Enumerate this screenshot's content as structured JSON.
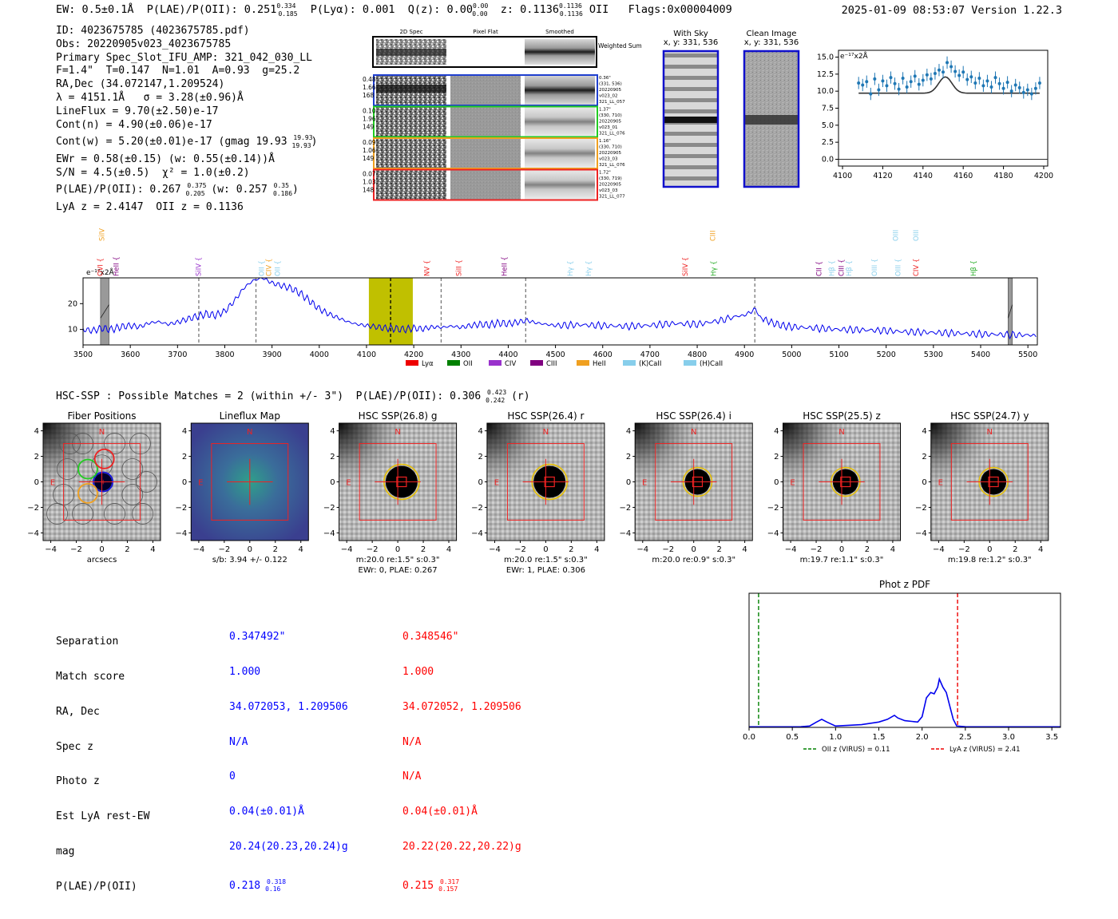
{
  "header": {
    "left": "EW: 0.5±0.1Å  P(LAE)/P(OII): 0.251",
    "left_sup": "0.334",
    "left_sub": "0.185",
    "plya": "P(Lyα): 0.001  Q(z): 0.00",
    "qz_sup": "0.00",
    "qz_sub": "0.00",
    "z": "z: 0.1136",
    "z_sup": "0.1136",
    "z_sub": "0.1136",
    "zline": "OII   Flags:0x00004009",
    "right": "2025-01-09 08:53:07  Version 1.22.3"
  },
  "info": {
    "lines": [
      "ID: 4023675785 (4023675785.pdf)",
      "Obs: 20220905v023_4023675785",
      "Primary Spec_Slot_IFU_AMP: 321_042_030_LL",
      "F=1.4\"  T=0.147  N=1.01  A=0.93  g=25.2",
      "RA,Dec (34.072147,1.209524)",
      "λ = 4151.1Å   σ = 3.28(±0.96)Å",
      "LineFlux = 9.70(±2.50)e-17",
      "Cont(n) = 4.90(±0.06)e-17",
      "Cont(w) = 5.20(±0.01)e-17 (gmag 19.93",
      "EWr = 0.58(±0.15) (w: 0.55(±0.14))Å",
      "S/N = 4.5(±0.5)  χ² = 1.0(±0.2)",
      "P(LAE)/P(OII): 0.267",
      "LyA z = 2.4147  OII z = 0.1136"
    ],
    "gmag_sup": "19.93",
    "gmag_sub": "19.93",
    "plae_sup": "0.375",
    "plae_sub": "0.205",
    "plae_w": "(w: 0.257",
    "plae_w_sup": "0.35",
    "plae_w_sub": "0.186"
  },
  "cutouts": {
    "col_labels": [
      "2D Spec",
      "Pixel Flat",
      "Smoothed"
    ],
    "weighted_label": "Weighted Sum",
    "rows": [
      {
        "vals": [
          "0.48",
          "1.66",
          "168"
        ],
        "color": "#1f3fcf",
        "side": [
          "0.36\"",
          "(331, 536)",
          "20220905",
          "v023_02",
          "321_LL_057"
        ]
      },
      {
        "vals": [
          "0.10",
          "1.96",
          "149"
        ],
        "color": "#22cc22",
        "side": [
          "1.37\"",
          "(330, 710)",
          "20220905",
          "v023_01",
          "321_LL_076"
        ]
      },
      {
        "vals": [
          "0.09",
          "1.06",
          "149"
        ],
        "color": "#f0a020",
        "side": [
          "1.16\"",
          "(330, 710)",
          "20220905",
          "v023_03",
          "321_LL_076"
        ]
      },
      {
        "vals": [
          "0.07",
          "1.03",
          "148"
        ],
        "color": "#ee2222",
        "side": [
          "1.72\"",
          "(330, 719)",
          "20220905",
          "v023_03",
          "321_LL_077"
        ]
      }
    ],
    "with_sky_title": "With Sky",
    "with_sky_coord": "x, y: 331, 536",
    "clean_title": "Clean Image",
    "clean_coord": "x, y: 331, 536"
  },
  "chart_data": [
    {
      "type": "scatter",
      "name": "emission-line-fit",
      "unit_label": "e⁻¹⁷x2Å",
      "x": [
        4108,
        4110,
        4112,
        4114,
        4116,
        4118,
        4120,
        4122,
        4124,
        4126,
        4128,
        4130,
        4132,
        4134,
        4136,
        4138,
        4140,
        4142,
        4144,
        4146,
        4148,
        4150,
        4152,
        4154,
        4156,
        4158,
        4160,
        4162,
        4164,
        4166,
        4168,
        4170,
        4172,
        4174,
        4176,
        4178,
        4180,
        4182,
        4184,
        4186,
        4188,
        4190,
        4192,
        4194,
        4196,
        4198
      ],
      "y": [
        11.2,
        10.9,
        11.4,
        9.6,
        11.8,
        10.2,
        11.5,
        10.8,
        12.0,
        11.1,
        10.3,
        11.9,
        10.6,
        11.4,
        12.2,
        11.0,
        11.6,
        12.4,
        11.8,
        12.6,
        13.1,
        12.8,
        14.2,
        13.6,
        12.9,
        12.3,
        12.8,
        11.7,
        12.1,
        11.2,
        11.9,
        10.8,
        11.5,
        10.6,
        12.0,
        11.1,
        10.4,
        11.3,
        10.0,
        10.9,
        10.5,
        9.8,
        10.2,
        9.6,
        10.4,
        11.2
      ],
      "fit": {
        "continuum": 9.7,
        "amplitude": 2.4,
        "center": 4151.1,
        "sigma": 3.28
      },
      "xlim": [
        4098,
        4202
      ],
      "ylim": [
        -1,
        16
      ],
      "xticks": [
        4100,
        4120,
        4140,
        4160,
        4180,
        4200
      ],
      "yticks": [
        0.0,
        2.5,
        5.0,
        7.5,
        10.0,
        12.5,
        15.0
      ]
    },
    {
      "type": "line",
      "name": "full-spectrum",
      "unit_label": "e⁻¹⁷x2Å",
      "xlim": [
        3500,
        5520
      ],
      "ylim": [
        4,
        30
      ],
      "xticks": [
        3500,
        3600,
        3700,
        3800,
        3900,
        4000,
        4100,
        4200,
        4300,
        4400,
        4500,
        4600,
        4700,
        4800,
        4900,
        5000,
        5100,
        5200,
        5300,
        5400,
        5500
      ],
      "yticks": [
        10,
        20
      ],
      "x": [
        3500,
        3520,
        3540,
        3560,
        3580,
        3600,
        3620,
        3640,
        3660,
        3680,
        3700,
        3720,
        3740,
        3760,
        3780,
        3800,
        3820,
        3840,
        3860,
        3880,
        3900,
        3920,
        3940,
        3960,
        3980,
        4000,
        4020,
        4040,
        4060,
        4080,
        4100,
        4120,
        4140,
        4160,
        4180,
        4200,
        4220,
        4240,
        4260,
        4280,
        4300,
        4320,
        4340,
        4360,
        4380,
        4400,
        4420,
        4440,
        4460,
        4480,
        4500,
        4550,
        4600,
        4650,
        4700,
        4750,
        4800,
        4850,
        4880,
        4900,
        4920,
        4930,
        4940,
        4960,
        4980,
        5000,
        5050,
        5100,
        5150,
        5200,
        5250,
        5300,
        5350,
        5400,
        5450,
        5500,
        5520
      ],
      "y": [
        10,
        9.5,
        10.5,
        10,
        11,
        11.5,
        11,
        12.5,
        13,
        12,
        12.8,
        14,
        15,
        16,
        15.5,
        17,
        21,
        26,
        29,
        30,
        28,
        27,
        26,
        24,
        21,
        18,
        16,
        14.5,
        13,
        12,
        11.5,
        11,
        10.5,
        10.3,
        10,
        10.5,
        10.2,
        11,
        10.8,
        11.3,
        10.8,
        11.5,
        12,
        11.8,
        12.5,
        12.2,
        12.8,
        13.5,
        12.5,
        12,
        11.5,
        11.8,
        11.5,
        11.2,
        11.6,
        12.3,
        12,
        13.5,
        15,
        15.5,
        17.5,
        16.5,
        14,
        12.5,
        11.5,
        11,
        10.5,
        10,
        9.8,
        9.5,
        9,
        8.8,
        8.5,
        8.2,
        8,
        7.8,
        7.6
      ],
      "highlight_region": [
        4105,
        4198
      ],
      "masked_regions": [
        [
          3537,
          3555
        ],
        [
          5458,
          5467
        ]
      ],
      "dashed_lines": [
        3745,
        3866,
        4151,
        4258,
        4437,
        4922
      ],
      "line_labels": [
        {
          "label": "SiIV",
          "x": 3545,
          "color": "#f0a020",
          "row": 0
        },
        {
          "label": "OVI",
          "x": 3541,
          "color": "#ee2222",
          "row": 1
        },
        {
          "label": "HeII",
          "x": 3575,
          "color": "#800080",
          "row": 1
        },
        {
          "label": "SiIV",
          "x": 3749,
          "color": "#9932cc",
          "row": 1
        },
        {
          "label": "OII",
          "x": 3883,
          "color": "#87ceeb",
          "row": 1
        },
        {
          "label": "CIV",
          "x": 3898,
          "color": "#f0a020",
          "row": 1
        },
        {
          "label": "OII",
          "x": 3917,
          "color": "#87ceeb",
          "row": 1
        },
        {
          "label": "NV",
          "x": 4233,
          "color": "#ee2222",
          "row": 1
        },
        {
          "label": "SiII",
          "x": 4300,
          "color": "#ee2222",
          "row": 1
        },
        {
          "label": "HeII",
          "x": 4397,
          "color": "#800080",
          "row": 1
        },
        {
          "label": "Hγ",
          "x": 4536,
          "color": "#87ceeb",
          "row": 1
        },
        {
          "label": "Hγ",
          "x": 4575,
          "color": "#87ceeb",
          "row": 1
        },
        {
          "label": "SiIV",
          "x": 4780,
          "color": "#ee2222",
          "row": 1
        },
        {
          "label": "CIII",
          "x": 4838,
          "color": "#f0a020",
          "row": 0
        },
        {
          "label": "Hγ",
          "x": 4840,
          "color": "#22aa22",
          "row": 1
        },
        {
          "label": "CII",
          "x": 5063,
          "color": "#800080",
          "row": 1
        },
        {
          "label": "Hβ",
          "x": 5090,
          "color": "#87ceeb",
          "row": 1
        },
        {
          "label": "CIII",
          "x": 5110,
          "color": "#800080",
          "row": 1
        },
        {
          "label": "Hβ",
          "x": 5126,
          "color": "#87ceeb",
          "row": 1
        },
        {
          "label": "OIII",
          "x": 5180,
          "color": "#87ceeb",
          "row": 1
        },
        {
          "label": "OIII",
          "x": 5225,
          "color": "#87ceeb",
          "row": 0
        },
        {
          "label": "OIII",
          "x": 5230,
          "color": "#87ceeb",
          "row": 1
        },
        {
          "label": "OIII",
          "x": 5268,
          "color": "#87ceeb",
          "row": 0
        },
        {
          "label": "CIV",
          "x": 5268,
          "color": "#ee2222",
          "row": 1
        },
        {
          "label": "Hβ",
          "x": 5390,
          "color": "#22aa22",
          "row": 1
        }
      ],
      "legend": [
        {
          "label": "Lyα",
          "color": "#ee0000"
        },
        {
          "label": "OII",
          "color": "#008000"
        },
        {
          "label": "CIV",
          "color": "#9932cc"
        },
        {
          "label": "CIII",
          "color": "#800080"
        },
        {
          "label": "HeII",
          "color": "#f0a020"
        },
        {
          "label": "(K)CaII",
          "color": "#87ceeb"
        },
        {
          "label": "(H)CaII",
          "color": "#87ceeb"
        }
      ]
    },
    {
      "type": "line",
      "name": "photo-z-pdf",
      "title": "Phot z PDF",
      "xlim": [
        0,
        3.6
      ],
      "ylim": [
        0,
        1
      ],
      "xticks": [
        0.0,
        0.5,
        1.0,
        1.5,
        2.0,
        2.5,
        3.0,
        3.5
      ],
      "x": [
        0,
        0.6,
        0.7,
        0.78,
        0.84,
        0.9,
        1.0,
        1.3,
        1.5,
        1.6,
        1.68,
        1.72,
        1.8,
        1.95,
        2.0,
        2.05,
        2.1,
        2.14,
        2.18,
        2.2,
        2.24,
        2.28,
        2.32,
        2.36,
        2.4,
        2.5,
        3.0,
        3.6
      ],
      "y": [
        0.004,
        0.005,
        0.01,
        0.04,
        0.06,
        0.04,
        0.01,
        0.02,
        0.04,
        0.06,
        0.09,
        0.07,
        0.05,
        0.04,
        0.08,
        0.22,
        0.26,
        0.25,
        0.3,
        0.36,
        0.3,
        0.26,
        0.16,
        0.06,
        0.01,
        0.005,
        0.004,
        0.004
      ],
      "vlines": [
        {
          "x": 0.11,
          "color": "#008000",
          "label": "OII z (VIRUS) = 0.11"
        },
        {
          "x": 2.41,
          "color": "#ee0000",
          "label": "LyA z (VIRUS) = 2.41"
        }
      ]
    }
  ],
  "hsc": {
    "title": "HSC-SSP : Possible Matches = 2 (within +/- 3\")  P(LAE)/P(OII): 0.306",
    "title_sup": "0.423",
    "title_sub": "0.242",
    "title_tail": "(r)",
    "panels": [
      {
        "title": "Fiber Positions",
        "caption1": "arcsecs",
        "caption2": ""
      },
      {
        "title": "Lineflux Map",
        "caption1": "s/b: 3.94 +/- 0.122",
        "caption2": ""
      },
      {
        "title": "HSC SSP(26.8) g",
        "caption1": "m:20.0  re:1.5\"  s:0.3\"",
        "caption2": "EWr: 0, PLAE: 0.267"
      },
      {
        "title": "HSC SSP(26.4) r",
        "caption1": "m:20.0  re:1.5\"  s:0.3\"",
        "caption2": "EWr: 1, PLAE: 0.306"
      },
      {
        "title": "HSC SSP(26.4) i",
        "caption1": "m:20.0  re:0.9\"  s:0.3\"",
        "caption2": ""
      },
      {
        "title": "HSC SSP(25.5) z",
        "caption1": "m:19.7  re:1.1\"  s:0.3\"",
        "caption2": ""
      },
      {
        "title": "HSC SSP(24.7) y",
        "caption1": "m:19.8  re:1.2\"  s:0.3\"",
        "caption2": ""
      }
    ],
    "ticks": [
      "4",
      "2",
      "0",
      "−2",
      "−4"
    ],
    "xticks": [
      "−4",
      "−2",
      "0",
      "2",
      "4"
    ],
    "north": "N",
    "east": "E"
  },
  "match_table": {
    "labels": [
      "Separation",
      "Match score",
      "RA, Dec",
      "Spec z",
      "Photo z",
      "Est LyA rest-EW",
      "mag",
      "P(LAE)/P(OII)"
    ],
    "match1": [
      "0.347492\"",
      "1.000",
      "34.072053, 1.209506",
      "N/A",
      "0",
      "0.04(±0.01)Å",
      "20.24(20.23,20.24)g",
      "0.218"
    ],
    "match1_sup": "0.318",
    "match1_sub": "0.16",
    "match2": [
      "0.348546\"",
      "1.000",
      "34.072052, 1.209506",
      "N/A",
      "N/A",
      "0.04(±0.01)Å",
      "20.22(20.22,20.22)g",
      "0.215"
    ],
    "match2_sup": "0.317",
    "match2_sub": "0.157"
  },
  "colors": {
    "spectrum": "#0000ee",
    "highlight": "#c0c000",
    "fit_points": "#1f77b4",
    "match1": "#0000ff",
    "match2": "#ff0000"
  }
}
